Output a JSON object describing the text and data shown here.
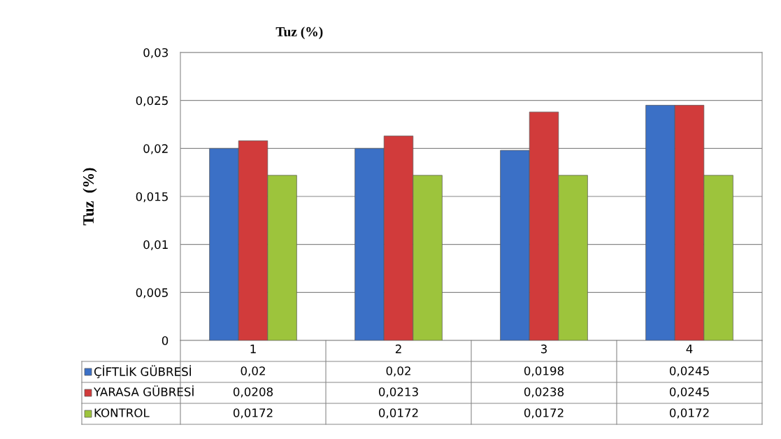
{
  "chart_data": {
    "type": "bar",
    "title": "Tuz (%)",
    "ylabel": "Tuz  (%)",
    "categories": [
      "1",
      "2",
      "3",
      "4"
    ],
    "series": [
      {
        "name": "ÇİFTLİK GÜBRESİ",
        "color": "#3b70c6",
        "values": [
          0.02,
          0.02,
          0.0198,
          0.0245
        ],
        "value_labels": [
          "0,02",
          "0,02",
          "0,0198",
          "0,0245"
        ]
      },
      {
        "name": "YARASA GÜBRESİ",
        "color": "#d13b3b",
        "values": [
          0.0208,
          0.0213,
          0.0238,
          0.0245
        ],
        "value_labels": [
          "0,0208",
          "0,0213",
          "0,0238",
          "0,0245"
        ]
      },
      {
        "name": "KONTROL",
        "color": "#9dc43c",
        "values": [
          0.0172,
          0.0172,
          0.0172,
          0.0172
        ],
        "value_labels": [
          "0,0172",
          "0,0172",
          "0,0172",
          "0,0172"
        ]
      }
    ],
    "ylim": [
      0,
      0.03
    ],
    "yticks": [
      0,
      {
        "value": 0.005,
        "label": "0,005"
      },
      {
        "value": 0.01,
        "label": "0,01"
      },
      {
        "value": 0.015,
        "label": "0,015"
      },
      {
        "value": 0.02,
        "label": "0,02"
      },
      {
        "value": 0.025,
        "label": "0,025"
      },
      {
        "value": 0.03,
        "label": "0,03"
      }
    ],
    "grid": "y",
    "legend": "bottom"
  }
}
